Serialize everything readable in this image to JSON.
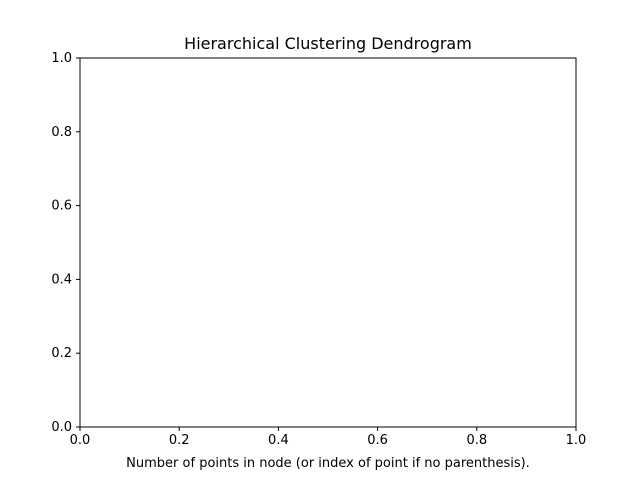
{
  "chart_data": {
    "type": "line",
    "title": "Hierarchical Clustering Dendrogram",
    "xlabel": "Number of points in node (or index of point if no parenthesis).",
    "ylabel": "",
    "xlim": [
      0.0,
      1.0
    ],
    "ylim": [
      0.0,
      1.0
    ],
    "x_ticks": [
      0.0,
      0.2,
      0.4,
      0.6,
      0.8,
      1.0
    ],
    "y_ticks": [
      0.0,
      0.2,
      0.4,
      0.6,
      0.8,
      1.0
    ],
    "x_tick_labels": [
      "0.0",
      "0.2",
      "0.4",
      "0.6",
      "0.8",
      "1.0"
    ],
    "y_tick_labels": [
      "0.0",
      "0.2",
      "0.4",
      "0.6",
      "0.8",
      "1.0"
    ],
    "series": [],
    "grid": false,
    "colors": {
      "axes": "#000000",
      "background": "#ffffff"
    }
  }
}
